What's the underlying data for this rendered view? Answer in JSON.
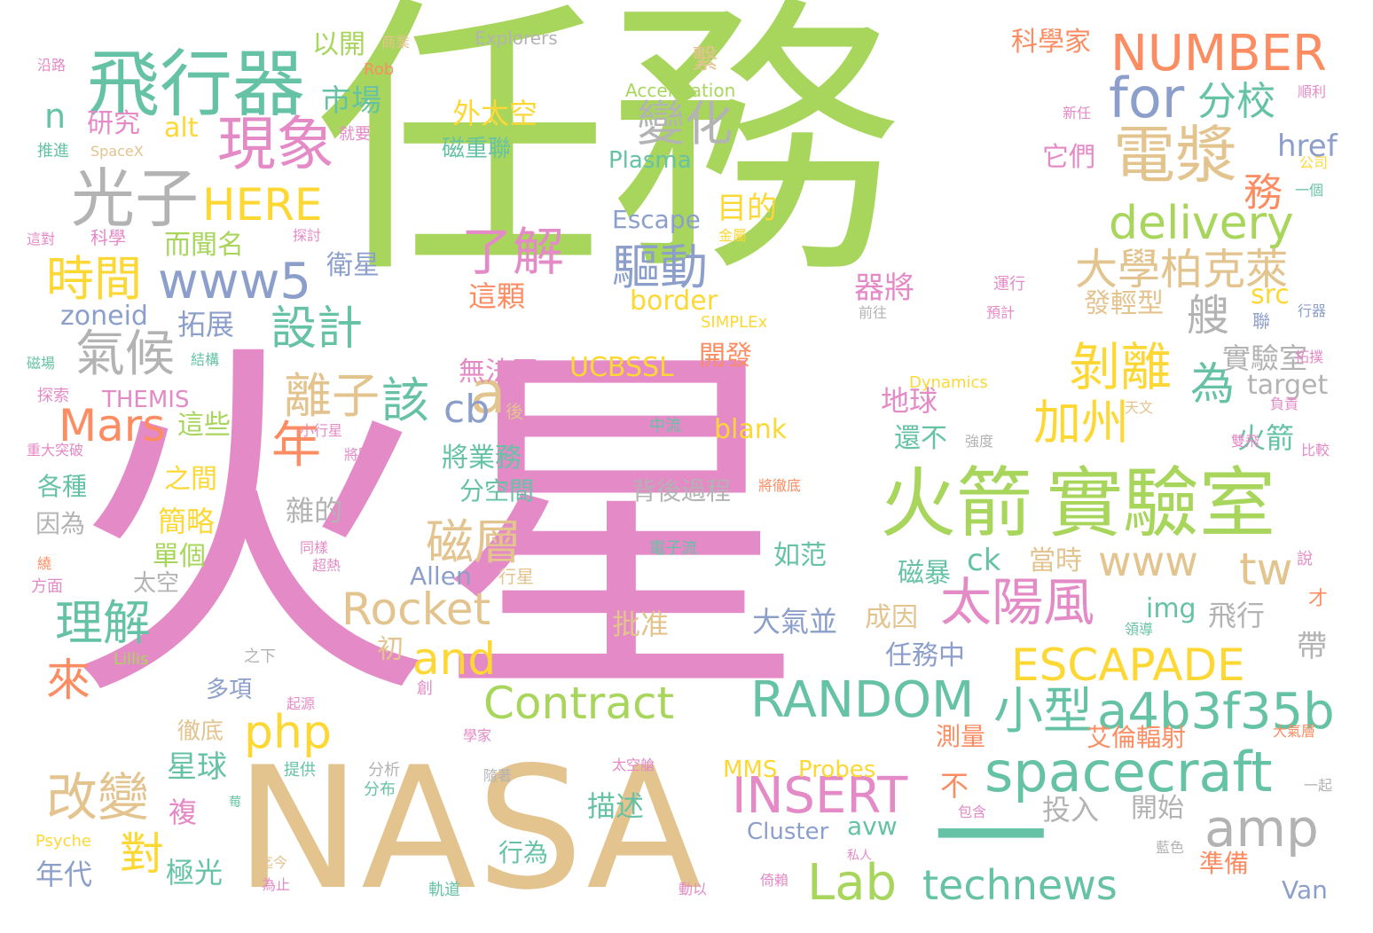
{
  "palette": {
    "green": "#a8d65c",
    "pink": "#e48ac6",
    "tan": "#e3c38e",
    "teal": "#66c2a5",
    "blue": "#8c9fcb",
    "yellow": "#fdd835",
    "orange": "#fc8d62",
    "gray": "#b3b3b3",
    "gray_dark": "#a6a6a6"
  },
  "words": [
    {
      "text": "任務",
      "color": "green"
    },
    {
      "text": "火星",
      "color": "pink"
    },
    {
      "text": "NASA",
      "color": "tan"
    },
    {
      "text": "飛行器",
      "color": "teal"
    },
    {
      "text": "現象",
      "color": "pink"
    },
    {
      "text": "光子",
      "color": "gray"
    },
    {
      "text": "電漿",
      "color": "tan"
    },
    {
      "text": "火箭",
      "color": "green"
    },
    {
      "text": "實驗室",
      "color": "green"
    },
    {
      "text": "NUMBER",
      "color": "orange"
    },
    {
      "text": "for",
      "color": "blue"
    },
    {
      "text": "分校",
      "color": "teal"
    },
    {
      "text": "變化",
      "color": "gray"
    },
    {
      "text": "delivery",
      "color": "green"
    },
    {
      "text": "大學柏克萊",
      "color": "tan"
    },
    {
      "text": "了解",
      "color": "pink"
    },
    {
      "text": "驅動",
      "color": "blue"
    },
    {
      "text": "HERE",
      "color": "yellow"
    },
    {
      "text": "時間",
      "color": "yellow"
    },
    {
      "text": "www5",
      "color": "blue"
    },
    {
      "text": "設計",
      "color": "teal"
    },
    {
      "text": "氣候",
      "color": "gray"
    },
    {
      "text": "a",
      "color": "tan"
    },
    {
      "text": "剝離",
      "color": "yellow"
    },
    {
      "text": "為",
      "color": "teal"
    },
    {
      "text": "離子",
      "color": "tan"
    },
    {
      "text": "該",
      "color": "teal"
    },
    {
      "text": "cb",
      "color": "blue"
    },
    {
      "text": "加州",
      "color": "yellow"
    },
    {
      "text": "Mars",
      "color": "orange"
    },
    {
      "text": "年",
      "color": "orange"
    },
    {
      "text": "磁層",
      "color": "tan"
    },
    {
      "text": "www",
      "color": "tan"
    },
    {
      "text": "tw",
      "color": "tan"
    },
    {
      "text": "太陽風",
      "color": "pink"
    },
    {
      "text": "小型",
      "color": "teal"
    },
    {
      "text": "a4b3f35b",
      "color": "teal"
    },
    {
      "text": "理解",
      "color": "teal"
    },
    {
      "text": "Rocket",
      "color": "tan"
    },
    {
      "text": "and",
      "color": "yellow"
    },
    {
      "text": "ESCAPADE",
      "color": "yellow"
    },
    {
      "text": "來",
      "color": "orange"
    },
    {
      "text": "Contract",
      "color": "green"
    },
    {
      "text": "RANDOM",
      "color": "teal"
    },
    {
      "text": "php",
      "color": "yellow"
    },
    {
      "text": "spacecraft",
      "color": "teal"
    },
    {
      "text": "改變",
      "color": "tan"
    },
    {
      "text": "INSERT",
      "color": "pink"
    },
    {
      "text": "amp",
      "color": "gray"
    },
    {
      "text": "對",
      "color": "yellow"
    },
    {
      "text": "Lab",
      "color": "green"
    },
    {
      "text": "technews",
      "color": "teal"
    },
    {
      "text": "一",
      "color": "teal"
    },
    {
      "text": "n",
      "color": "teal"
    },
    {
      "text": "市場",
      "color": "teal"
    },
    {
      "text": "以開",
      "color": "green"
    },
    {
      "text": "外太空",
      "color": "yellow"
    },
    {
      "text": "磁重聯",
      "color": "teal"
    },
    {
      "text": "研究",
      "color": "pink"
    },
    {
      "text": "alt",
      "color": "yellow"
    },
    {
      "text": "科學家",
      "color": "orange"
    },
    {
      "text": "艘",
      "color": "gray"
    },
    {
      "text": "務",
      "color": "orange"
    },
    {
      "text": "href",
      "color": "blue"
    },
    {
      "text": "它們",
      "color": "pink"
    },
    {
      "text": "目的",
      "color": "yellow"
    },
    {
      "text": "Plasma",
      "color": "teal"
    },
    {
      "text": "Escape",
      "color": "blue"
    },
    {
      "text": "而聞名",
      "color": "green"
    },
    {
      "text": "衛星",
      "color": "blue"
    },
    {
      "text": "這顆",
      "color": "orange"
    },
    {
      "text": "器將",
      "color": "pink"
    },
    {
      "text": "發輕型",
      "color": "tan"
    },
    {
      "text": "src",
      "color": "yellow"
    },
    {
      "text": "zoneid",
      "color": "blue"
    },
    {
      "text": "拓展",
      "color": "blue"
    },
    {
      "text": "border",
      "color": "yellow"
    },
    {
      "text": "開發",
      "color": "orange"
    },
    {
      "text": "實驗室",
      "color": "gray"
    },
    {
      "text": "target",
      "color": "gray"
    },
    {
      "text": "UCBSSL",
      "color": "yellow"
    },
    {
      "text": "無法區",
      "color": "pink"
    },
    {
      "text": "地球",
      "color": "pink"
    },
    {
      "text": "還不",
      "color": "teal"
    },
    {
      "text": "火箭",
      "color": "teal"
    },
    {
      "text": "THEMIS",
      "color": "pink"
    },
    {
      "text": "這些",
      "color": "green"
    },
    {
      "text": "將業務",
      "color": "teal"
    },
    {
      "text": "blank",
      "color": "yellow"
    },
    {
      "text": "分空間",
      "color": "teal"
    },
    {
      "text": "之間",
      "color": "yellow"
    },
    {
      "text": "各種",
      "color": "teal"
    },
    {
      "text": "雜的",
      "color": "gray"
    },
    {
      "text": "背後過程",
      "color": "gray"
    },
    {
      "text": "因為",
      "color": "gray"
    },
    {
      "text": "簡略",
      "color": "yellow"
    },
    {
      "text": "單個",
      "color": "green"
    },
    {
      "text": "如范",
      "color": "teal"
    },
    {
      "text": "ck",
      "color": "teal"
    },
    {
      "text": "當時",
      "color": "tan"
    },
    {
      "text": "磁暴",
      "color": "teal"
    },
    {
      "text": "Allen",
      "color": "blue"
    },
    {
      "text": "太空",
      "color": "gray"
    },
    {
      "text": "img",
      "color": "teal"
    },
    {
      "text": "成因",
      "color": "tan"
    },
    {
      "text": "飛行",
      "color": "gray"
    },
    {
      "text": "批准",
      "color": "tan"
    },
    {
      "text": "大氣並",
      "color": "blue"
    },
    {
      "text": "帶",
      "color": "gray"
    },
    {
      "text": "初",
      "color": "tan"
    },
    {
      "text": "任務中",
      "color": "blue"
    },
    {
      "text": "多項",
      "color": "blue"
    },
    {
      "text": "徹底",
      "color": "tan"
    },
    {
      "text": "艾倫輻射",
      "color": "orange"
    },
    {
      "text": "測量",
      "color": "orange"
    },
    {
      "text": "星球",
      "color": "teal"
    },
    {
      "text": "MMS",
      "color": "yellow"
    },
    {
      "text": "Probes",
      "color": "yellow"
    },
    {
      "text": "複",
      "color": "pink"
    },
    {
      "text": "不",
      "color": "orange"
    },
    {
      "text": "投入",
      "color": "gray"
    },
    {
      "text": "開始",
      "color": "gray"
    },
    {
      "text": "描述",
      "color": "teal"
    },
    {
      "text": "Cluster",
      "color": "blue"
    },
    {
      "text": "avw",
      "color": "teal"
    },
    {
      "text": "年代",
      "color": "blue"
    },
    {
      "text": "極光",
      "color": "teal"
    },
    {
      "text": "行為",
      "color": "teal"
    },
    {
      "text": "準備",
      "color": "orange"
    },
    {
      "text": "Van",
      "color": "blue"
    },
    {
      "text": "沿路",
      "color": "pink"
    },
    {
      "text": "Explorers",
      "color": "gray"
    },
    {
      "text": "商業",
      "color": "tan"
    },
    {
      "text": "Rob",
      "color": "orange"
    },
    {
      "text": "繫",
      "color": "tan"
    },
    {
      "text": "Acceleration",
      "color": "green"
    },
    {
      "text": "順利",
      "color": "pink"
    },
    {
      "text": "新任",
      "color": "pink"
    },
    {
      "text": "就要",
      "color": "pink"
    },
    {
      "text": "推進",
      "color": "teal"
    },
    {
      "text": "SpaceX",
      "color": "tan"
    },
    {
      "text": "公司",
      "color": "yellow"
    },
    {
      "text": "一個",
      "color": "teal"
    },
    {
      "text": "科學",
      "color": "pink"
    },
    {
      "text": "這對",
      "color": "pink"
    },
    {
      "text": "探討",
      "color": "pink"
    },
    {
      "text": "金屬",
      "color": "yellow"
    },
    {
      "text": "運行",
      "color": "pink"
    },
    {
      "text": "預計",
      "color": "pink"
    },
    {
      "text": "前往",
      "color": "gray"
    },
    {
      "text": "SIMPLEx",
      "color": "yellow"
    },
    {
      "text": "行器",
      "color": "blue"
    },
    {
      "text": "磁場",
      "color": "teal"
    },
    {
      "text": "結構",
      "color": "teal"
    },
    {
      "text": "聯",
      "color": "blue"
    },
    {
      "text": "拓撲",
      "color": "pink"
    },
    {
      "text": "探索",
      "color": "pink"
    },
    {
      "text": "Dynamics",
      "color": "yellow"
    },
    {
      "text": "後",
      "color": "tan"
    },
    {
      "text": "天文",
      "color": "tan"
    },
    {
      "text": "負責",
      "color": "pink"
    },
    {
      "text": "中流",
      "color": "teal"
    },
    {
      "text": "小行星",
      "color": "pink"
    },
    {
      "text": "強度",
      "color": "gray"
    },
    {
      "text": "雙飛",
      "color": "pink"
    },
    {
      "text": "比較",
      "color": "pink"
    },
    {
      "text": "重大突破",
      "color": "pink"
    },
    {
      "text": "將圍",
      "color": "pink"
    },
    {
      "text": "將徹底",
      "color": "orange"
    },
    {
      "text": "同樣",
      "color": "pink"
    },
    {
      "text": "超熱",
      "color": "pink"
    },
    {
      "text": "電子流",
      "color": "teal"
    },
    {
      "text": "繞",
      "color": "orange"
    },
    {
      "text": "方面",
      "color": "pink"
    },
    {
      "text": "行星",
      "color": "tan"
    },
    {
      "text": "說",
      "color": "pink"
    },
    {
      "text": "才",
      "color": "orange"
    },
    {
      "text": "領導",
      "color": "teal"
    },
    {
      "text": "Lillis",
      "color": "green"
    },
    {
      "text": "之下",
      "color": "gray"
    },
    {
      "text": "起源",
      "color": "pink"
    },
    {
      "text": "創",
      "color": "pink"
    },
    {
      "text": "學家",
      "color": "pink"
    },
    {
      "text": "大氣層",
      "color": "orange"
    },
    {
      "text": "提供",
      "color": "teal"
    },
    {
      "text": "分析",
      "color": "gray"
    },
    {
      "text": "分布",
      "color": "teal"
    },
    {
      "text": "隨著",
      "color": "gray"
    },
    {
      "text": "太空艙",
      "color": "pink"
    },
    {
      "text": "一起",
      "color": "gray"
    },
    {
      "text": "莓",
      "color": "teal"
    },
    {
      "text": "私人",
      "color": "pink"
    },
    {
      "text": "包含",
      "color": "pink"
    },
    {
      "text": "Psyche",
      "color": "yellow"
    },
    {
      "text": "迄今",
      "color": "tan"
    },
    {
      "text": "為止",
      "color": "pink"
    },
    {
      "text": "軌道",
      "color": "teal"
    },
    {
      "text": "動以",
      "color": "pink"
    },
    {
      "text": "倚賴",
      "color": "pink"
    },
    {
      "text": "藍色",
      "color": "gray"
    }
  ]
}
